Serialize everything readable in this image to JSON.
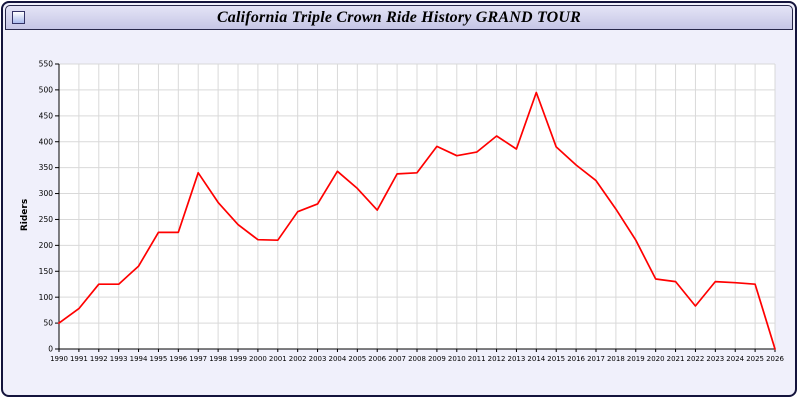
{
  "window": {
    "title": "California Triple Crown Ride History GRAND TOUR"
  },
  "colors": {
    "page_background": "#f0f0fb",
    "titlebar_background": "#c6c6e6",
    "plot_background": "#ffffff",
    "grid": "#d9d9d9",
    "axis": "#000000",
    "line": "#ff0000"
  },
  "chart_data": {
    "type": "line",
    "title": "California Triple Crown Ride History GRAND TOUR",
    "xlabel": "",
    "ylabel": "Riders",
    "ylim": [
      0,
      550
    ],
    "ytick_step": 50,
    "grid": true,
    "legend": "none",
    "series_name": "Riders",
    "years": [
      1990,
      1991,
      1992,
      1993,
      1994,
      1995,
      1996,
      1997,
      1998,
      1999,
      2000,
      2001,
      2002,
      2003,
      2004,
      2005,
      2006,
      2007,
      2008,
      2009,
      2010,
      2011,
      2012,
      2013,
      2014,
      2015,
      2016,
      2017,
      2018,
      2019,
      2020,
      2021,
      2022,
      2023,
      2024,
      2025,
      2026
    ],
    "values": [
      50,
      78,
      125,
      125,
      160,
      225,
      225,
      340,
      283,
      240,
      211,
      210,
      265,
      280,
      343,
      310,
      268,
      338,
      340,
      391,
      373,
      380,
      411,
      386,
      495,
      390,
      355,
      325,
      270,
      210,
      135,
      130,
      83,
      130,
      128,
      125,
      0
    ]
  }
}
